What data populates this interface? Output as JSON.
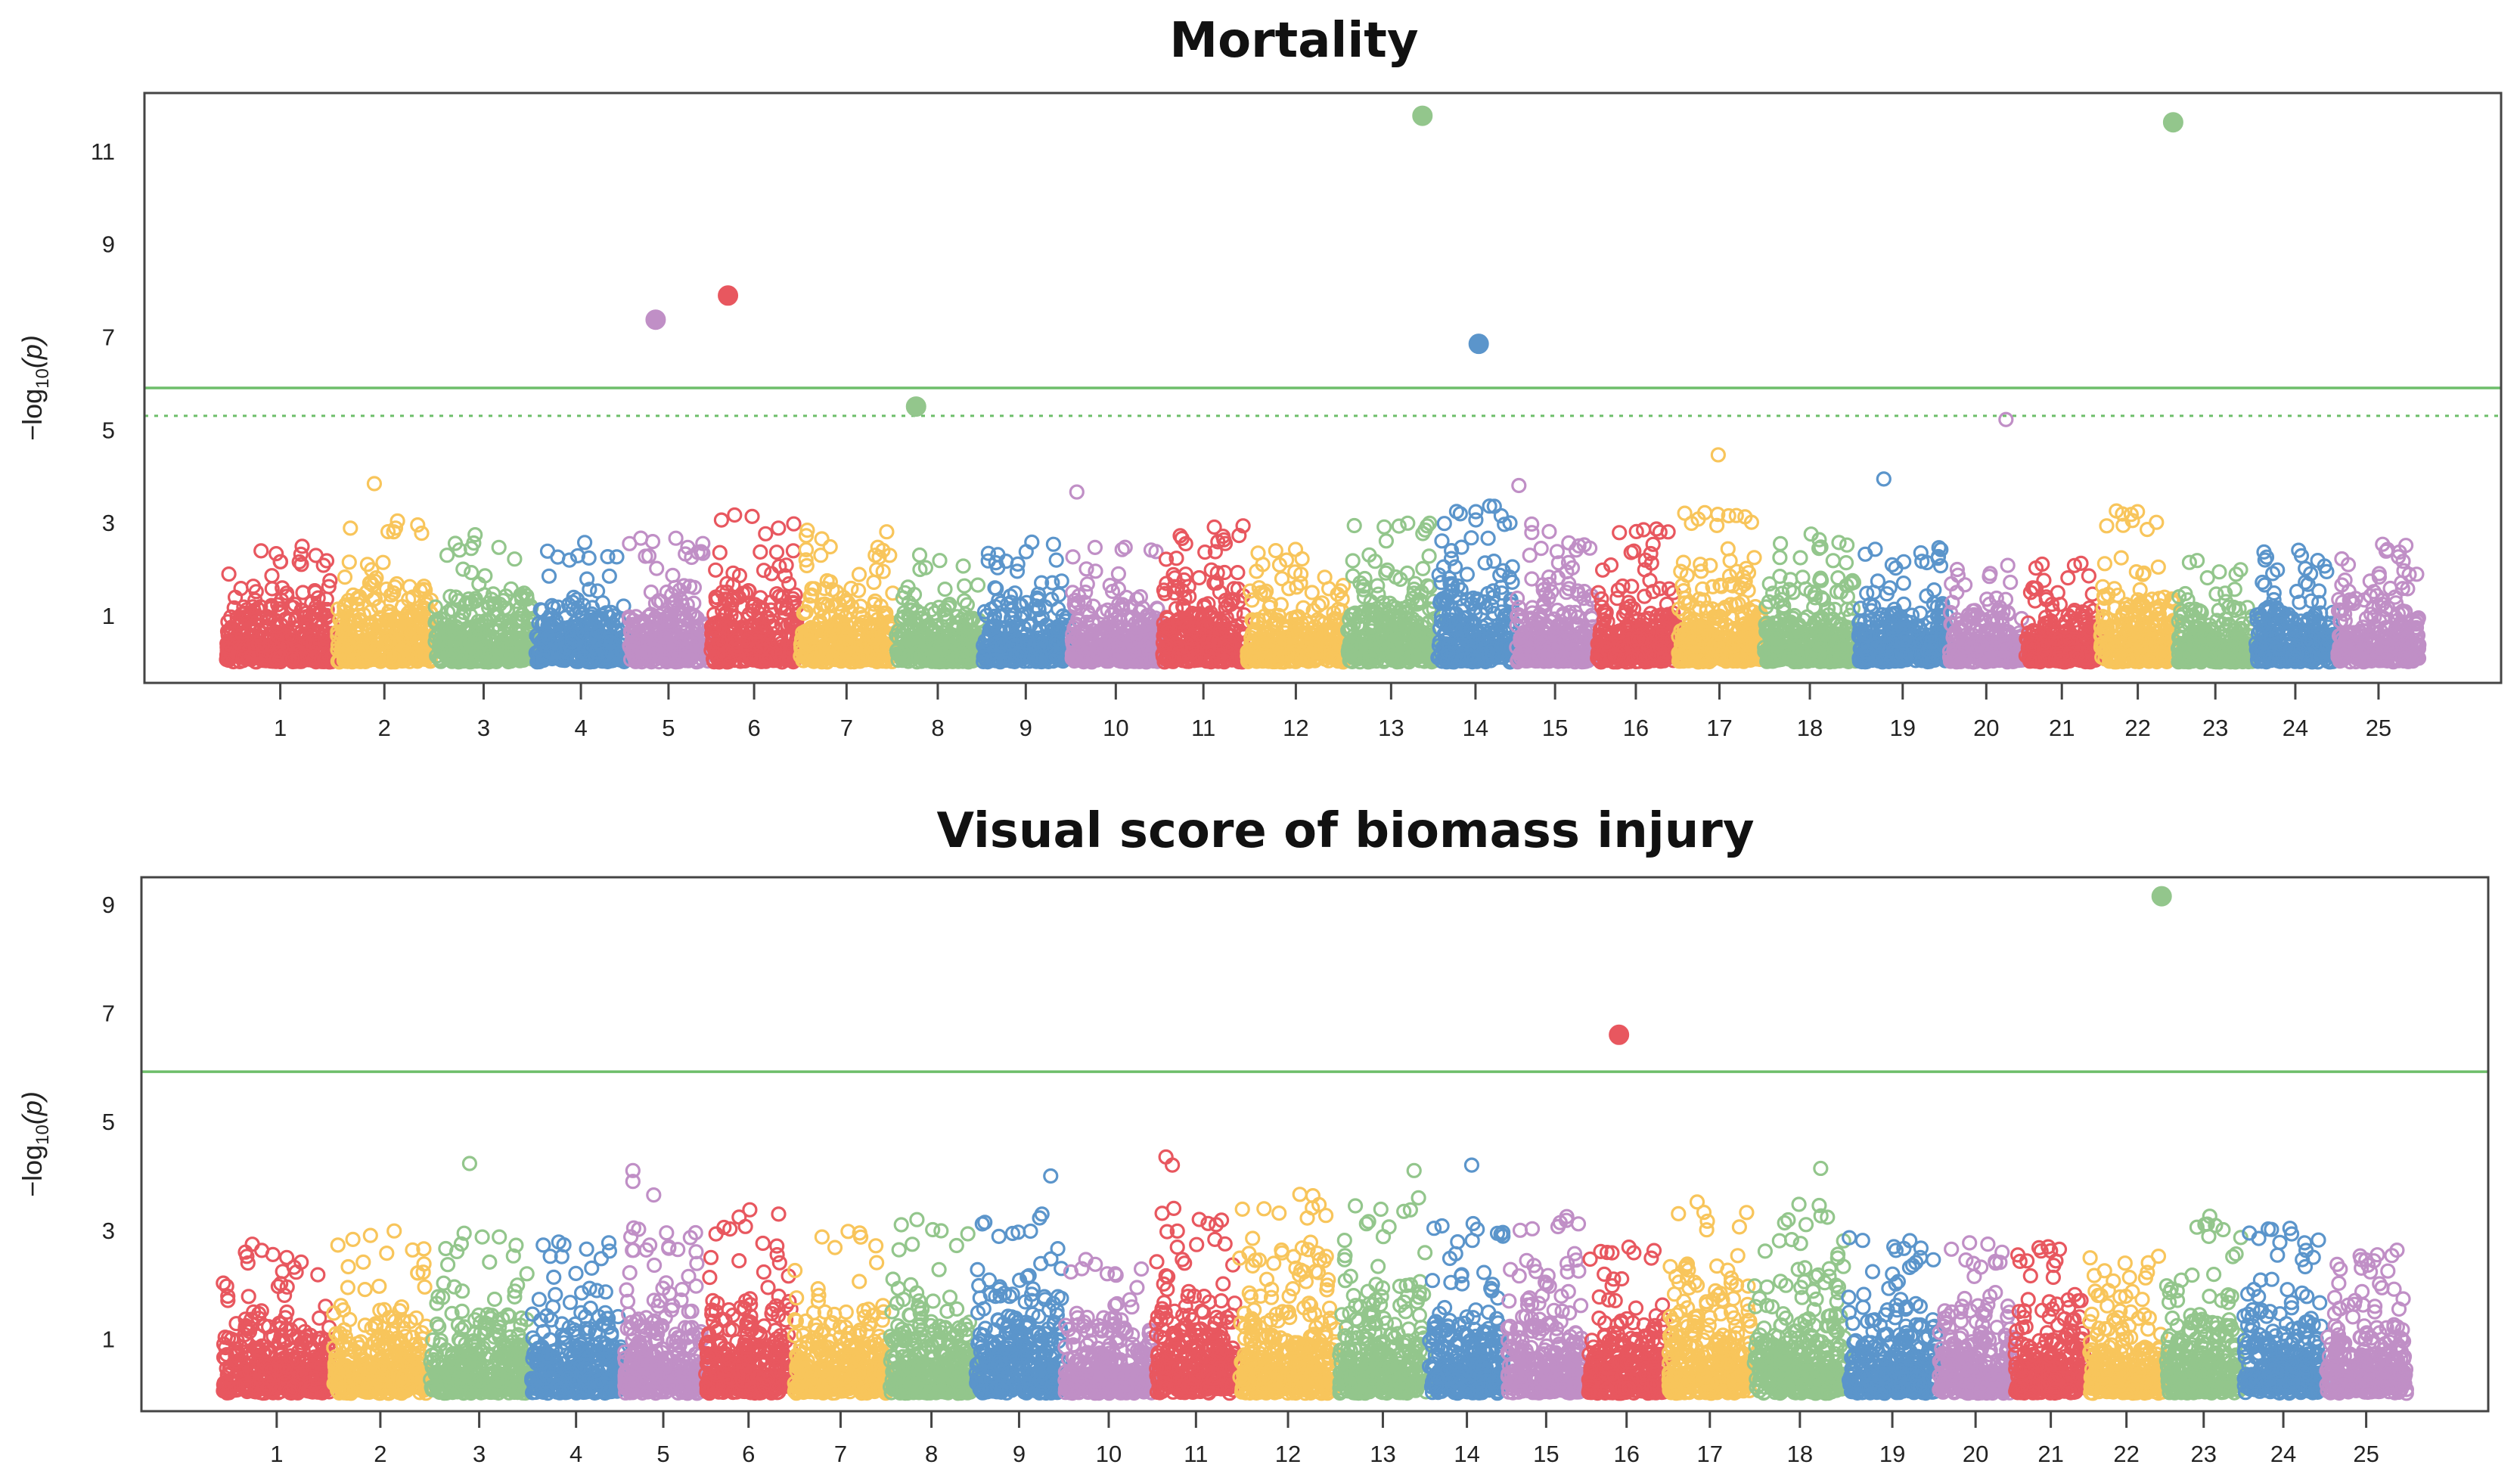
{
  "chart_data": {
    "type": "scatter",
    "subtype": "manhattan",
    "colors": [
      "#E8575F",
      "#F8C55B",
      "#93C68C",
      "#5B95CB",
      "#C08FC6"
    ],
    "threshold_color": "#6DBE6A",
    "chromosomes": [
      "1",
      "2",
      "3",
      "4",
      "5",
      "6",
      "7",
      "8",
      "9",
      "10",
      "11",
      "12",
      "13",
      "14",
      "15",
      "16",
      "17",
      "18",
      "19",
      "20",
      "21",
      "22",
      "23",
      "24",
      "25"
    ],
    "chromosome_relative_lengths": [
      69,
      60.5,
      63,
      58,
      51,
      55.5,
      59.5,
      54,
      55.5,
      56.5,
      52.5,
      62.5,
      56,
      49,
      50,
      50.5,
      53.5,
      59,
      56.5,
      47.5,
      46.5,
      48,
      48.5,
      51,
      52.5
    ],
    "xlim": [
      -50,
      1416
    ],
    "panels": [
      {
        "title": "Mortality",
        "ylabel_main": "−log",
        "ylabel_sub": "10",
        "ylabel_var": "(p)",
        "yticks": [
          "1",
          "3",
          "5",
          "7",
          "9",
          "11"
        ],
        "ylim": [
          -0.45,
          12.25
        ],
        "thresholds": [
          {
            "value": 5.9,
            "style": "solid"
          },
          {
            "value": 5.3,
            "style": "dashed"
          }
        ],
        "background_max_by_chr": [
          2.5,
          3.1,
          2.8,
          2.6,
          2.7,
          3.2,
          2.9,
          2.4,
          2.6,
          2.5,
          3.0,
          2.5,
          3.2,
          3.4,
          3.0,
          3.0,
          3.3,
          2.8,
          2.5,
          2.1,
          2.3,
          3.3,
          2.2,
          2.5,
          2.6
        ],
        "highlighted_points": [
          {
            "chr": 5,
            "pos": 268,
            "value": 7.37,
            "filled": true
          },
          {
            "chr": 6,
            "pos": 313,
            "value": 7.89,
            "filled": true
          },
          {
            "chr": 8,
            "pos": 430,
            "value": 5.5,
            "filled": true
          },
          {
            "chr": 13,
            "pos": 745,
            "value": 11.76,
            "filled": true
          },
          {
            "chr": 14,
            "pos": 780,
            "value": 6.85,
            "filled": true
          },
          {
            "chr": 20,
            "pos": 1108,
            "value": 5.22,
            "filled": false
          },
          {
            "chr": 23,
            "pos": 1212,
            "value": 11.62,
            "filled": true
          },
          {
            "chr": 2,
            "pos": 93,
            "value": 3.84,
            "filled": false
          },
          {
            "chr": 17,
            "pos": 929,
            "value": 4.46,
            "filled": false
          },
          {
            "chr": 19,
            "pos": 1032,
            "value": 3.94,
            "filled": false
          },
          {
            "chr": 15,
            "pos": 805,
            "value": 3.8,
            "filled": false
          },
          {
            "chr": 10,
            "pos": 530,
            "value": 3.66,
            "filled": false
          }
        ]
      },
      {
        "title": "Visual score of biomass injury",
        "ylabel_main": "−log",
        "ylabel_sub": "10",
        "ylabel_var": "(p)",
        "yticks": [
          "1",
          "3",
          "5",
          "7",
          "9"
        ],
        "ylim": [
          -0.33,
          9.5
        ],
        "thresholds": [
          {
            "value": 5.92,
            "style": "solid"
          }
        ],
        "background_max_by_chr": [
          2.8,
          3.0,
          3.0,
          2.8,
          3.2,
          3.4,
          3.1,
          3.2,
          3.3,
          2.5,
          3.5,
          3.7,
          3.6,
          3.2,
          3.3,
          2.8,
          3.6,
          3.6,
          2.9,
          2.8,
          2.8,
          2.6,
          3.3,
          3.1,
          2.8
        ],
        "highlighted_points": [
          {
            "chr": 23,
            "pos": 1212,
            "value": 9.15,
            "filled": true
          },
          {
            "chr": 16,
            "pos": 873,
            "value": 6.6,
            "filled": true
          },
          {
            "chr": 3,
            "pos": 155,
            "value": 4.23,
            "filled": false
          },
          {
            "chr": 5,
            "pos": 257,
            "value": 4.1,
            "filled": false
          },
          {
            "chr": 5,
            "pos": 257,
            "value": 3.9,
            "filled": false
          },
          {
            "chr": 5,
            "pos": 270,
            "value": 3.65,
            "filled": false
          },
          {
            "chr": 14,
            "pos": 781,
            "value": 4.2,
            "filled": false
          },
          {
            "chr": 11,
            "pos": 590,
            "value": 4.35,
            "filled": false
          },
          {
            "chr": 11,
            "pos": 594,
            "value": 4.2,
            "filled": false
          },
          {
            "chr": 13,
            "pos": 745,
            "value": 4.1,
            "filled": false
          },
          {
            "chr": 18,
            "pos": 999,
            "value": 4.14,
            "filled": false
          },
          {
            "chr": 9,
            "pos": 518,
            "value": 4.0,
            "filled": false
          }
        ]
      }
    ]
  }
}
